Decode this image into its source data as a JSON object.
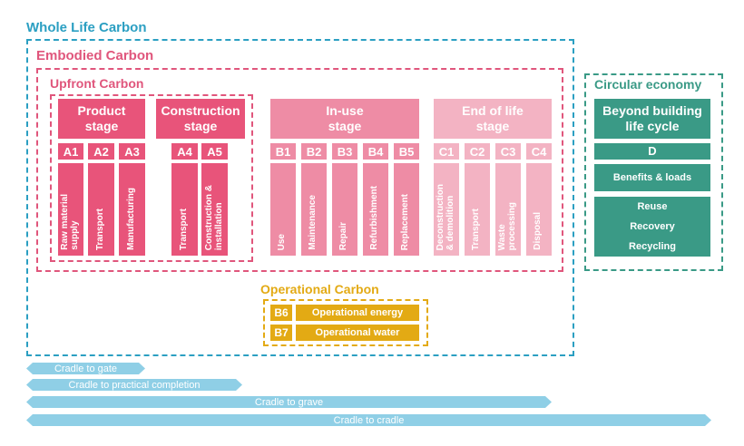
{
  "whole_life": {
    "title": "Whole Life Carbon",
    "color": "#2b9fc2"
  },
  "embodied": {
    "title": "Embodied Carbon",
    "color": "#e0567c"
  },
  "upfront": {
    "title": "Upfront Carbon"
  },
  "stages": {
    "product": "Product\nstage",
    "construction": "Construction\nstage",
    "inuse": "In-use\nstage",
    "eol": "End of life\nstage"
  },
  "modules": [
    {
      "code": "A1",
      "label": "Raw material\nsupply"
    },
    {
      "code": "A2",
      "label": "Transport"
    },
    {
      "code": "A3",
      "label": "Manufacturing"
    },
    {
      "code": "A4",
      "label": "Transport"
    },
    {
      "code": "A5",
      "label": "Construction &\ninstallation"
    },
    {
      "code": "B1",
      "label": "Use"
    },
    {
      "code": "B2",
      "label": "Maintenance"
    },
    {
      "code": "B3",
      "label": "Repair"
    },
    {
      "code": "B4",
      "label": "Refurbishment"
    },
    {
      "code": "B5",
      "label": "Replacement"
    },
    {
      "code": "C1",
      "label": "Deconstruction\n& demolition"
    },
    {
      "code": "C2",
      "label": "Transport"
    },
    {
      "code": "C3",
      "label": "Waste\nprocessing"
    },
    {
      "code": "C4",
      "label": "Disposal"
    }
  ],
  "operational": {
    "title": "Operational Carbon",
    "color": "#e3aa14",
    "b6_code": "B6",
    "b6_label": "Operational energy",
    "b7_code": "B7",
    "b7_label": "Operational water"
  },
  "circular": {
    "title": "Circular economy",
    "color": "#3a9a86",
    "beyond": "Beyond building\nlife cycle",
    "d": "D",
    "benefits": "Benefits & loads",
    "reuse": "Reuse",
    "recovery": "Recovery",
    "recycling": "Recycling"
  },
  "scopes": {
    "gate": "Cradle to gate",
    "practical": "Cradle to practical completion",
    "grave": "Cradle to grave",
    "cradle": "Cradle to cradle"
  },
  "colors": {
    "product": "#e8547a",
    "inuse": "#ee8ca5",
    "eol": "#f3b3c3",
    "arrow": "#8fcfe6"
  }
}
